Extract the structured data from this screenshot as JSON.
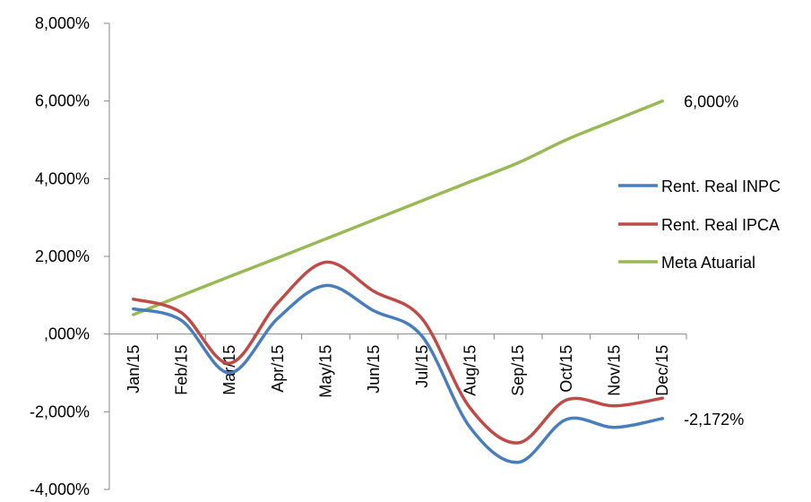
{
  "chart_data": {
    "type": "line",
    "title": "",
    "xlabel": "",
    "ylabel": "",
    "categories": [
      "Jan/15",
      "Feb/15",
      "Mar/15",
      "Apr/15",
      "May/15",
      "Jun/15",
      "Jul/15",
      "Aug/15",
      "Sep/15",
      "Oct/15",
      "Nov/15",
      "Dec/15"
    ],
    "ylim": [
      -4,
      8
    ],
    "y_ticks": [
      8,
      6,
      4,
      2,
      0,
      -2,
      -4
    ],
    "y_tick_labels": [
      "8,000%",
      "6,000%",
      "4,000%",
      "2,000%",
      ",000%",
      "-2,000%",
      "-4,000%"
    ],
    "grid": false,
    "legend_position": "right",
    "series": [
      {
        "name": "Rent. Real INPC",
        "color": "#4a7ebb",
        "values": [
          0.65,
          0.35,
          -1.0,
          0.4,
          1.25,
          0.6,
          -0.05,
          -2.4,
          -3.3,
          -2.2,
          -2.4,
          -2.172
        ]
      },
      {
        "name": "Rent. Real IPCA",
        "color": "#be4b48",
        "values": [
          0.9,
          0.55,
          -0.75,
          0.8,
          1.85,
          1.1,
          0.4,
          -1.9,
          -2.8,
          -1.7,
          -1.85,
          -1.65
        ]
      },
      {
        "name": "Meta Atuarial",
        "color": "#98b954",
        "values": [
          0.5,
          0.99,
          1.48,
          1.96,
          2.45,
          2.94,
          3.43,
          3.92,
          4.41,
          5.0,
          5.5,
          6.0
        ]
      }
    ],
    "annotations": [
      {
        "text": "6,000%",
        "series": "Meta Atuarial",
        "index": 11
      },
      {
        "text": "-2,172%",
        "series": "Rent. Real INPC",
        "index": 11
      }
    ]
  }
}
